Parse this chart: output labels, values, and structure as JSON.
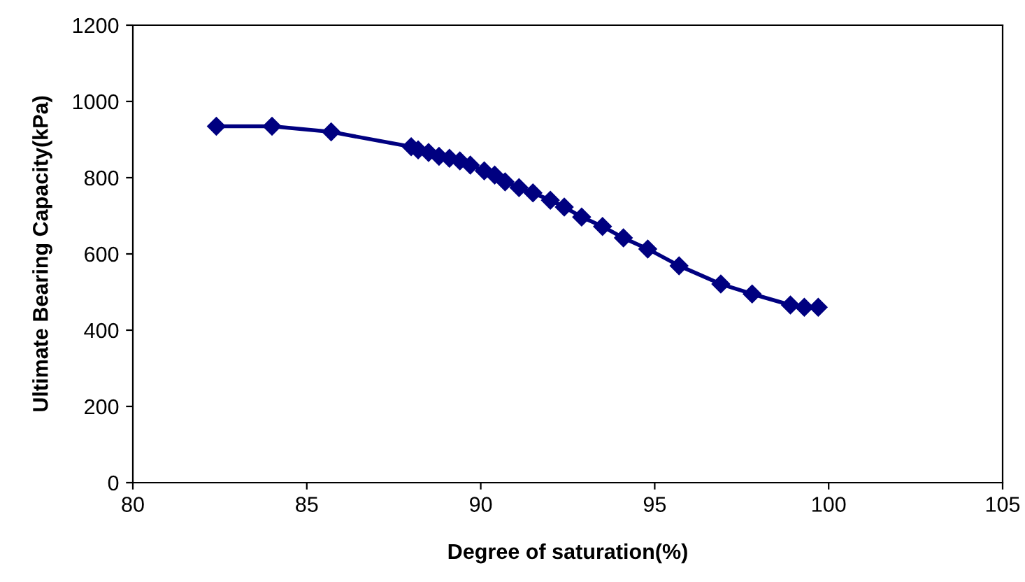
{
  "chart_data": {
    "type": "line",
    "xlabel": "Degree of saturation(%)",
    "ylabel": "Ultimate Bearing Capacity(kPa)",
    "series": [
      {
        "color": "#000080",
        "x": [
          82.4,
          84.0,
          85.7,
          88.0,
          88.2,
          88.5,
          88.8,
          89.1,
          89.4,
          89.7,
          90.1,
          90.4,
          90.7,
          91.1,
          91.5,
          92.0,
          92.4,
          92.9,
          93.5,
          94.1,
          94.8,
          95.7,
          96.9,
          97.8,
          98.9,
          99.3,
          99.7
        ],
        "values": [
          935,
          935,
          920,
          881,
          873,
          866,
          856,
          851,
          844,
          833,
          818,
          807,
          789,
          774,
          760,
          741,
          723,
          697,
          672,
          642,
          613,
          569,
          521,
          495,
          466,
          460,
          460
        ]
      }
    ],
    "xlim": [
      80,
      105
    ],
    "xticks": [
      80,
      85,
      90,
      95,
      100,
      105
    ],
    "ylim": [
      0,
      1200
    ],
    "yticks": [
      0,
      200,
      400,
      600,
      800,
      1000,
      1200
    ],
    "marker": "diamond",
    "line_style": "solid",
    "grid": false,
    "legend": false
  }
}
